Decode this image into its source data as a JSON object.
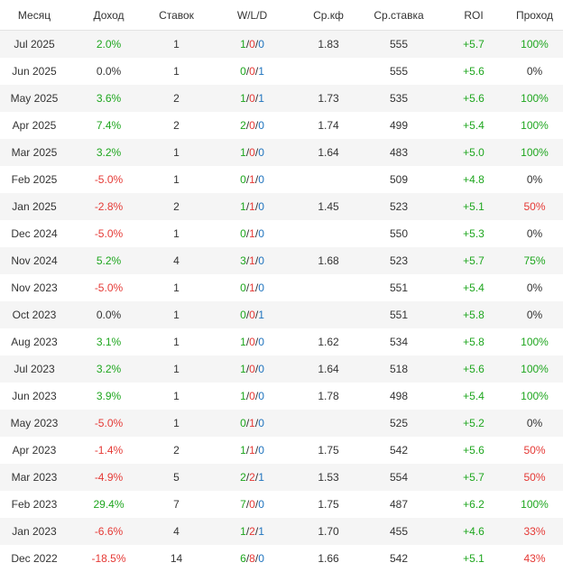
{
  "columns": [
    "Месяц",
    "Доход",
    "Ставок",
    "W/L/D",
    "Ср.кф",
    "Ср.ставка",
    "ROI",
    "Проход"
  ],
  "colors": {
    "positive": "#1ea61e",
    "negative": "#e53935",
    "neutral": "#333333",
    "draw": "#1e73be"
  },
  "rows": [
    {
      "month": "Jul 2025",
      "income": "2.0%",
      "bets": "1",
      "w": "1",
      "l": "0",
      "d": "0",
      "avg_odds": "1.83",
      "avg_stake": "555",
      "roi": "+5.7",
      "pass": "100%"
    },
    {
      "month": "Jun 2025",
      "income": "0.0%",
      "bets": "1",
      "w": "0",
      "l": "0",
      "d": "1",
      "avg_odds": "",
      "avg_stake": "555",
      "roi": "+5.6",
      "pass": "0%"
    },
    {
      "month": "May 2025",
      "income": "3.6%",
      "bets": "2",
      "w": "1",
      "l": "0",
      "d": "1",
      "avg_odds": "1.73",
      "avg_stake": "535",
      "roi": "+5.6",
      "pass": "100%"
    },
    {
      "month": "Apr 2025",
      "income": "7.4%",
      "bets": "2",
      "w": "2",
      "l": "0",
      "d": "0",
      "avg_odds": "1.74",
      "avg_stake": "499",
      "roi": "+5.4",
      "pass": "100%"
    },
    {
      "month": "Mar 2025",
      "income": "3.2%",
      "bets": "1",
      "w": "1",
      "l": "0",
      "d": "0",
      "avg_odds": "1.64",
      "avg_stake": "483",
      "roi": "+5.0",
      "pass": "100%"
    },
    {
      "month": "Feb 2025",
      "income": "-5.0%",
      "bets": "1",
      "w": "0",
      "l": "1",
      "d": "0",
      "avg_odds": "",
      "avg_stake": "509",
      "roi": "+4.8",
      "pass": "0%"
    },
    {
      "month": "Jan 2025",
      "income": "-2.8%",
      "bets": "2",
      "w": "1",
      "l": "1",
      "d": "0",
      "avg_odds": "1.45",
      "avg_stake": "523",
      "roi": "+5.1",
      "pass": "50%"
    },
    {
      "month": "Dec 2024",
      "income": "-5.0%",
      "bets": "1",
      "w": "0",
      "l": "1",
      "d": "0",
      "avg_odds": "",
      "avg_stake": "550",
      "roi": "+5.3",
      "pass": "0%"
    },
    {
      "month": "Nov 2024",
      "income": "5.2%",
      "bets": "4",
      "w": "3",
      "l": "1",
      "d": "0",
      "avg_odds": "1.68",
      "avg_stake": "523",
      "roi": "+5.7",
      "pass": "75%"
    },
    {
      "month": "Nov 2023",
      "income": "-5.0%",
      "bets": "1",
      "w": "0",
      "l": "1",
      "d": "0",
      "avg_odds": "",
      "avg_stake": "551",
      "roi": "+5.4",
      "pass": "0%"
    },
    {
      "month": "Oct 2023",
      "income": "0.0%",
      "bets": "1",
      "w": "0",
      "l": "0",
      "d": "1",
      "avg_odds": "",
      "avg_stake": "551",
      "roi": "+5.8",
      "pass": "0%"
    },
    {
      "month": "Aug 2023",
      "income": "3.1%",
      "bets": "1",
      "w": "1",
      "l": "0",
      "d": "0",
      "avg_odds": "1.62",
      "avg_stake": "534",
      "roi": "+5.8",
      "pass": "100%"
    },
    {
      "month": "Jul 2023",
      "income": "3.2%",
      "bets": "1",
      "w": "1",
      "l": "0",
      "d": "0",
      "avg_odds": "1.64",
      "avg_stake": "518",
      "roi": "+5.6",
      "pass": "100%"
    },
    {
      "month": "Jun 2023",
      "income": "3.9%",
      "bets": "1",
      "w": "1",
      "l": "0",
      "d": "0",
      "avg_odds": "1.78",
      "avg_stake": "498",
      "roi": "+5.4",
      "pass": "100%"
    },
    {
      "month": "May 2023",
      "income": "-5.0%",
      "bets": "1",
      "w": "0",
      "l": "1",
      "d": "0",
      "avg_odds": "",
      "avg_stake": "525",
      "roi": "+5.2",
      "pass": "0%"
    },
    {
      "month": "Apr 2023",
      "income": "-1.4%",
      "bets": "2",
      "w": "1",
      "l": "1",
      "d": "0",
      "avg_odds": "1.75",
      "avg_stake": "542",
      "roi": "+5.6",
      "pass": "50%"
    },
    {
      "month": "Mar 2023",
      "income": "-4.9%",
      "bets": "5",
      "w": "2",
      "l": "2",
      "d": "1",
      "avg_odds": "1.53",
      "avg_stake": "554",
      "roi": "+5.7",
      "pass": "50%"
    },
    {
      "month": "Feb 2023",
      "income": "29.4%",
      "bets": "7",
      "w": "7",
      "l": "0",
      "d": "0",
      "avg_odds": "1.75",
      "avg_stake": "487",
      "roi": "+6.2",
      "pass": "100%"
    },
    {
      "month": "Jan 2023",
      "income": "-6.6%",
      "bets": "4",
      "w": "1",
      "l": "2",
      "d": "1",
      "avg_odds": "1.70",
      "avg_stake": "455",
      "roi": "+4.6",
      "pass": "33%"
    },
    {
      "month": "Dec 2022",
      "income": "-18.5%",
      "bets": "14",
      "w": "6",
      "l": "8",
      "d": "0",
      "avg_odds": "1.66",
      "avg_stake": "542",
      "roi": "+5.1",
      "pass": "43%"
    }
  ]
}
